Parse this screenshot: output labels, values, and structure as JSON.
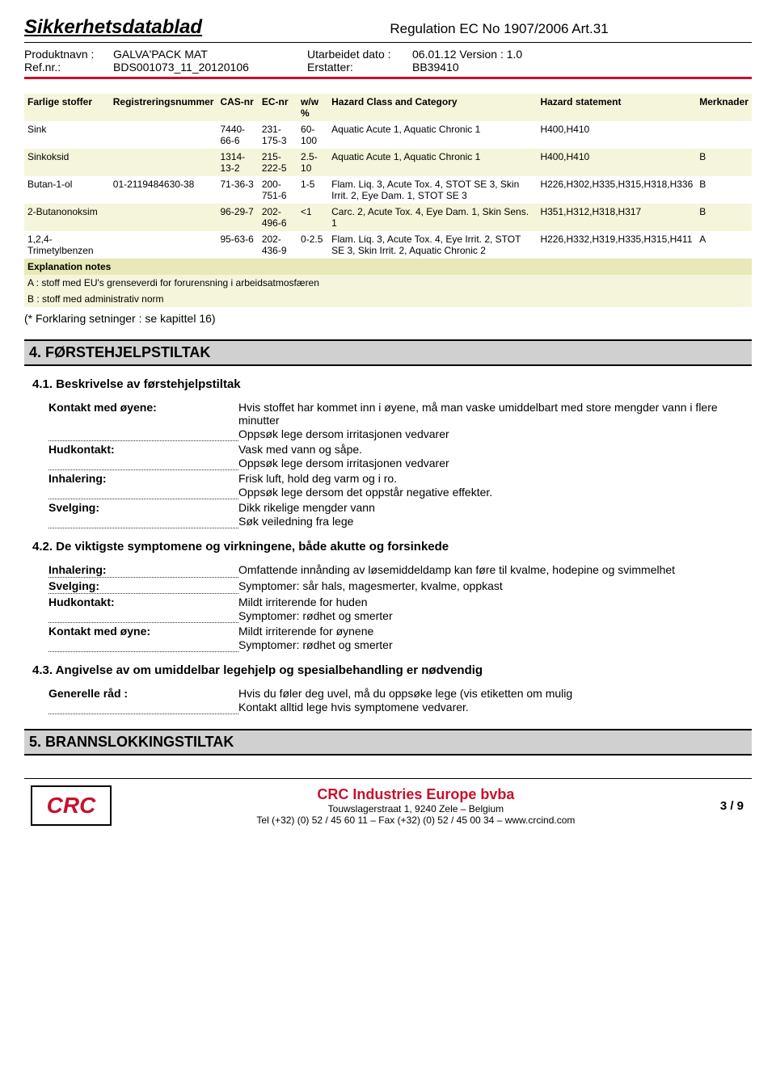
{
  "header": {
    "doc_title": "Sikkerhetsdatablad",
    "regulation": "Regulation EC No 1907/2006 Art.31",
    "labels": {
      "product": "Produktnavn :",
      "ref": "Ref.nr.:",
      "date": "Utarbeidet dato :",
      "replaces": "Erstatter:"
    },
    "product_name": "GALVA'PACK MAT",
    "ref_nr": "BDS001073_11_20120106",
    "date": "06.01.12 Version : 1.0",
    "replaces": "BB39410"
  },
  "ingredients": {
    "columns": [
      "Farlige stoffer",
      "Registreringsnummer",
      "CAS-nr",
      "EC-nr",
      "w/w %",
      "Hazard Class and Category",
      "Hazard statement",
      "Merknader"
    ],
    "rows": [
      {
        "name": "Sink",
        "reg": "",
        "cas": "7440-66-6",
        "ec": "231-175-3",
        "ww": "60-100",
        "hazard": "Aquatic Acute 1, Aquatic Chronic 1",
        "stmt": "H400,H410",
        "note": ""
      },
      {
        "name": "Sinkoksid",
        "reg": "",
        "cas": "1314-13-2",
        "ec": "215-222-5",
        "ww": "2.5-10",
        "hazard": "Aquatic Acute 1, Aquatic Chronic 1",
        "stmt": "H400,H410",
        "note": "B"
      },
      {
        "name": "Butan-1-ol",
        "reg": "01-2119484630-38",
        "cas": "71-36-3",
        "ec": "200-751-6",
        "ww": "1-5",
        "hazard": "Flam. Liq. 3, Acute Tox. 4, STOT SE 3, Skin Irrit. 2, Eye Dam. 1, STOT SE 3",
        "stmt": "H226,H302,H335,H315,H318,H336",
        "note": "B"
      },
      {
        "name": "2-Butanonoksim",
        "reg": "",
        "cas": "96-29-7",
        "ec": "202-496-6",
        "ww": "<1",
        "hazard": "Carc. 2, Acute Tox. 4, Eye Dam. 1, Skin Sens. 1",
        "stmt": "H351,H312,H318,H317",
        "note": "B"
      },
      {
        "name": "1,2,4-Trimetylbenzen",
        "reg": "",
        "cas": "95-63-6",
        "ec": "202-436-9",
        "ww": "0-2.5",
        "hazard": "Flam. Liq. 3, Acute Tox. 4, Eye Irrit. 2, STOT SE 3, Skin Irrit. 2, Aquatic Chronic 2",
        "stmt": "H226,H332,H319,H335,H315,H411",
        "note": "A"
      }
    ],
    "explanation_label": "Explanation notes",
    "note_a": "A : stoff med EU's grenseverdi for forurensning i arbeidsatmosfæren",
    "note_b": "B : stoff med administrativ norm",
    "post_text": "(* Forklaring setninger : se kapittel 16)"
  },
  "sec4": {
    "title": "4. FØRSTEHJELPSTILTAK",
    "sub1": {
      "title": "4.1. Beskrivelse av førstehjelpstiltak",
      "items": [
        {
          "label": "Kontakt med øyene:",
          "lines": [
            "Hvis stoffet har kommet inn i øyene, må man vaske umiddelbart med store mengder vann i flere minutter",
            "Oppsøk lege dersom irritasjonen vedvarer"
          ]
        },
        {
          "label": "Hudkontakt:",
          "lines": [
            "Vask med vann og såpe.",
            "Oppsøk lege dersom irritasjonen vedvarer"
          ]
        },
        {
          "label": "Inhalering:",
          "lines": [
            "Frisk luft, hold deg varm og i ro.",
            "Oppsøk lege dersom det oppstår negative effekter."
          ]
        },
        {
          "label": "Svelging:",
          "lines": [
            "Dikk rikelige mengder vann",
            "Søk veiledning fra lege"
          ]
        }
      ]
    },
    "sub2": {
      "title": "4.2. De viktigste symptomene og virkningene, både akutte og forsinkede",
      "items": [
        {
          "label": "Inhalering:",
          "lines": [
            "Omfattende innånding av løsemiddeldamp kan føre til kvalme, hodepine og svimmelhet"
          ]
        },
        {
          "label": "Svelging:",
          "lines": [
            "Symptomer: sår hals, magesmerter, kvalme, oppkast"
          ]
        },
        {
          "label": "Hudkontakt:",
          "lines": [
            "Mildt irriterende for huden",
            "Symptomer: rødhet og smerter"
          ]
        },
        {
          "label": "Kontakt med øyne:",
          "lines": [
            "Mildt irriterende for øynene",
            "Symptomer: rødhet og smerter"
          ]
        }
      ]
    },
    "sub3": {
      "title": "4.3. Angivelse av om umiddelbar legehjelp og spesialbehandling er nødvendig",
      "items": [
        {
          "label": "Generelle råd :",
          "lines": [
            "Hvis du føler deg uvel, må du oppsøke lege (vis etiketten om mulig",
            "Kontakt alltid lege hvis symptomene vedvarer."
          ]
        }
      ]
    }
  },
  "sec5": {
    "title": "5. BRANNSLOKKINGSTILTAK"
  },
  "footer": {
    "logo": "CRC",
    "company": "CRC Industries Europe bvba",
    "address": "Touwslagerstraat 1, 9240 Zele – Belgium",
    "contact": "Tel (+32) (0) 52 / 45 60 11 – Fax (+32) (0) 52 / 45 00 34 – www.crcind.com",
    "page": "3 / 9"
  }
}
